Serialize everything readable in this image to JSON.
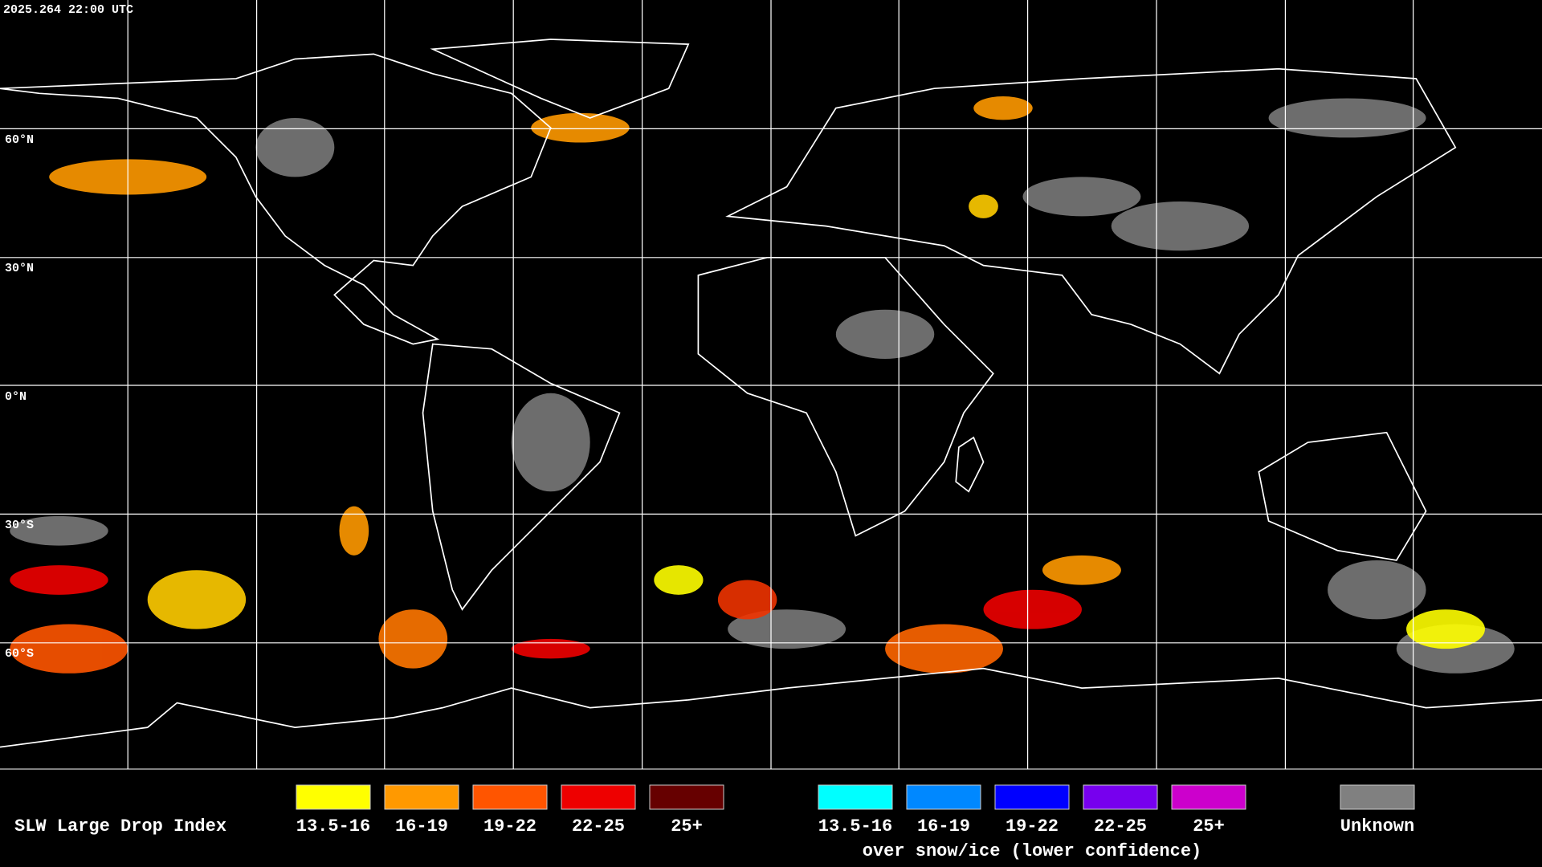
{
  "timestamp": "2025.264 22:00 UTC",
  "latitude_labels": [
    "60°N",
    "30°N",
    "0°N",
    "30°S",
    "60°S"
  ],
  "legend": {
    "title": "SLW Large Drop Index",
    "groups": [
      {
        "items": [
          {
            "label": "13.5-16",
            "color": "#ffff00"
          },
          {
            "label": "16-19",
            "color": "#ff9900"
          },
          {
            "label": "19-22",
            "color": "#ff5500"
          },
          {
            "label": "22-25",
            "color": "#ee0000"
          },
          {
            "label": "25+",
            "color": "#660000"
          }
        ]
      },
      {
        "items": [
          {
            "label": "13.5-16",
            "color": "#00ffff"
          },
          {
            "label": "16-19",
            "color": "#0088ff"
          },
          {
            "label": "19-22",
            "color": "#0000ff"
          },
          {
            "label": "22-25",
            "color": "#7700ee"
          },
          {
            "label": "25+",
            "color": "#cc00cc"
          }
        ],
        "caption": "over snow/ice (lower confidence)"
      },
      {
        "items": [
          {
            "label": "Unknown",
            "color": "#808080"
          }
        ]
      }
    ]
  }
}
